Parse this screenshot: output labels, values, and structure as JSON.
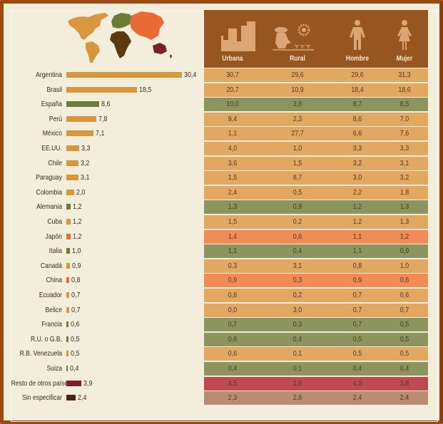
{
  "colors": {
    "frame": "#9c4a12",
    "background": "#f3eddc",
    "header": "#97561f",
    "america": "#d8963f",
    "europe": "#6b7c36",
    "asia": "#e96a33",
    "africa": "#5a3b11",
    "oceania": "#7c1f2b",
    "sin_especificar": "#4a220f"
  },
  "map": {
    "icon": "world-map-icon"
  },
  "table": {
    "columns": [
      {
        "label": "Urbana",
        "icon": "city-buildings-icon"
      },
      {
        "label": "Rural",
        "icon": "farmer-icon"
      },
      {
        "label": "Hombre",
        "icon": "man-icon"
      },
      {
        "label": "Mujer",
        "icon": "woman-icon"
      }
    ]
  },
  "chart_data": {
    "type": "bar",
    "orientation": "horizontal",
    "title": "",
    "xlabel": "",
    "ylabel": "",
    "xlim": [
      0,
      30.4
    ],
    "categories": [
      "Argentina",
      "Brasil",
      "España",
      "Perú",
      "México",
      "EE.UU.",
      "Chile",
      "Paraguay",
      "Colombia",
      "Alemania",
      "Cuba",
      "Japón",
      "Italia",
      "Canadá",
      "China",
      "Ecuador",
      "Belice",
      "Francia",
      "R.U. o G.B.",
      "R.B. Venezuela",
      "Suiza",
      "Resto de otros países",
      "Sin especificar"
    ],
    "values": [
      30.4,
      18.5,
      8.6,
      7.8,
      7.1,
      3.3,
      3.2,
      3.1,
      2.0,
      1.2,
      1.2,
      1.2,
      1.0,
      0.9,
      0.8,
      0.7,
      0.7,
      0.6,
      0.5,
      0.5,
      0.4,
      3.9,
      2.4
    ],
    "value_labels": [
      "30,4",
      "18,5",
      "8,6",
      "7,8",
      "7,1",
      "3,3",
      "3,2",
      "3,1",
      "2,0",
      "1,2",
      "1,2",
      "1,2",
      "1,0",
      "0,9",
      "0,8",
      "0,7",
      "0,7",
      "0,6",
      "0,5",
      "0,5",
      "0,4",
      "3,9",
      "2,4"
    ],
    "regions": [
      "america",
      "america",
      "europe",
      "america",
      "america",
      "america",
      "america",
      "america",
      "america",
      "europe",
      "america",
      "asia",
      "europe",
      "america",
      "asia",
      "america",
      "america",
      "europe",
      "europe",
      "america",
      "europe",
      "oceania",
      "sin_especificar"
    ],
    "table_rows": [
      [
        "30,7",
        "29,6",
        "29,6",
        "31,3"
      ],
      [
        "20,7",
        "10,9",
        "18,4",
        "18,6"
      ],
      [
        "10,0",
        "3,8",
        "8,7",
        "8,5"
      ],
      [
        "9,4",
        "2,3",
        "8,6",
        "7,0"
      ],
      [
        "1,1",
        "27,7",
        "6,6",
        "7,6"
      ],
      [
        "4,0",
        "1,0",
        "3,3",
        "3,3"
      ],
      [
        "3,6",
        "1,5",
        "3,2",
        "3,1"
      ],
      [
        "1,5",
        "8,7",
        "3,0",
        "3,2"
      ],
      [
        "2,4",
        "0,5",
        "2,2",
        "1,8"
      ],
      [
        "1,3",
        "0,9",
        "1,2",
        "1,3"
      ],
      [
        "1,5",
        "0,2",
        "1,2",
        "1,3"
      ],
      [
        "1,4",
        "0,6",
        "1,1",
        "1,2"
      ],
      [
        "1,1",
        "0,4",
        "1,1",
        "0,9"
      ],
      [
        "0,3",
        "3,1",
        "0,8",
        "1,0"
      ],
      [
        "0,9",
        "0,3",
        "0,9",
        "0,6"
      ],
      [
        "0,8",
        "0,2",
        "0,7",
        "0,6"
      ],
      [
        "0,0",
        "3,0",
        "0,7",
        "0,7"
      ],
      [
        "0,7",
        "0,3",
        "0,7",
        "0,5"
      ],
      [
        "0,6",
        "0,4",
        "0,5",
        "0,5"
      ],
      [
        "0,6",
        "0,1",
        "0,5",
        "0,5"
      ],
      [
        "0,4",
        "0,1",
        "0,4",
        "0,4"
      ],
      [
        "4,5",
        "1,8",
        "4,0",
        "3,8"
      ],
      [
        "2,3",
        "2,8",
        "2,4",
        "2,4"
      ]
    ],
    "row_colors": {
      "america": "#e2a862",
      "europe": "#8b955d",
      "asia": "#f08c55",
      "oceania": "#c04a54",
      "sin_especificar": "#b98c74"
    }
  }
}
